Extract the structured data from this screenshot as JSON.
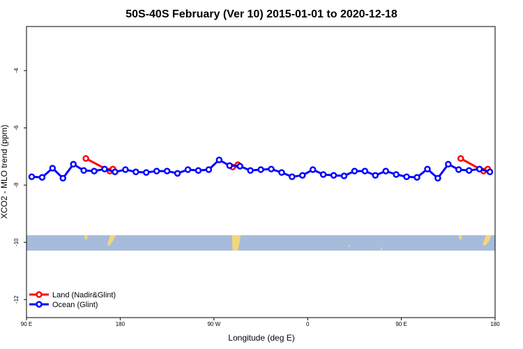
{
  "chart_data": {
    "type": "line",
    "title": "50S-40S February (Ver 10)   2015-01-01 to 2020-12-18",
    "x_label": "Longitude (deg E)",
    "y_label": "XCO2 - MLO trend (ppm)",
    "xlim": [
      90,
      540
    ],
    "ylim": [
      -12.63,
      -2.46
    ],
    "xticks": [
      {
        "value": 90,
        "label": "90 E"
      },
      180,
      {
        "value": 270,
        "label": "90 W"
      },
      {
        "value": 360,
        "label": "0"
      },
      {
        "value": 450,
        "label": "90 E"
      },
      {
        "value": 540,
        "label": "180"
      }
    ],
    "yticks": [
      -12,
      -10,
      -8,
      -6,
      -4
    ],
    "legend": "bottom-left",
    "series": [
      {
        "name": "Land (Nadir&Glint)",
        "color": "#ff0000",
        "x": [
          147,
          170,
          173,
          288,
          293,
          507,
          529,
          533
        ],
        "values": [
          -7.07,
          -7.51,
          -7.44,
          -7.37,
          -7.29,
          -7.07,
          -7.51,
          -7.44
        ]
      },
      {
        "name": "Ocean (Glint)",
        "color": "#0000ff",
        "x": [
          95,
          105,
          115,
          125,
          135,
          145,
          155,
          165,
          175,
          185,
          195,
          205,
          215,
          225,
          235,
          245,
          255,
          265,
          275,
          285,
          295,
          305,
          315,
          325,
          335,
          345,
          355,
          365,
          375,
          385,
          395,
          405,
          415,
          425,
          435,
          445,
          455,
          465,
          475,
          485,
          495,
          505,
          515,
          525,
          535
        ],
        "values": [
          -7.71,
          -7.73,
          -7.41,
          -7.76,
          -7.27,
          -7.49,
          -7.51,
          -7.44,
          -7.54,
          -7.46,
          -7.54,
          -7.56,
          -7.51,
          -7.51,
          -7.59,
          -7.46,
          -7.49,
          -7.46,
          -7.12,
          -7.32,
          -7.34,
          -7.49,
          -7.46,
          -7.44,
          -7.56,
          -7.71,
          -7.66,
          -7.46,
          -7.63,
          -7.66,
          -7.68,
          -7.51,
          -7.51,
          -7.66,
          -7.51,
          -7.63,
          -7.71,
          -7.73,
          -7.44,
          -7.76,
          -7.27,
          -7.46,
          -7.49,
          -7.44,
          -7.54
        ]
      }
    ]
  }
}
